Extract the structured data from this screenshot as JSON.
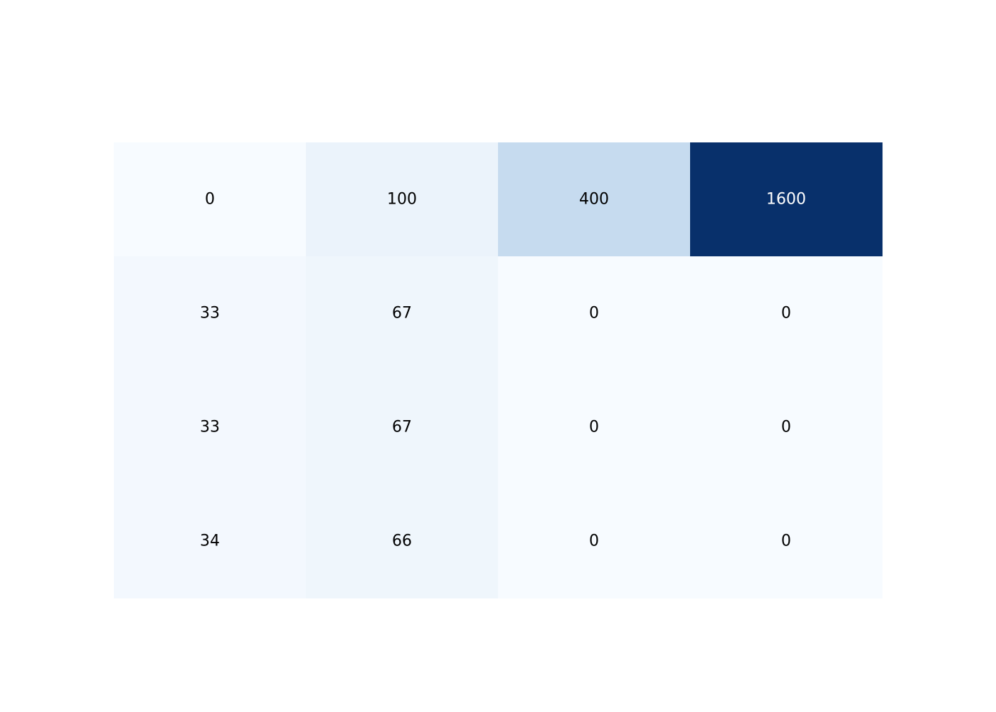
{
  "chart_data": {
    "type": "heatmap",
    "title": "",
    "xlabel": "",
    "ylabel": "",
    "colorscale": "Blues",
    "grid": false,
    "legend": "none",
    "zmin": 0,
    "zmax": 1600,
    "rows": 4,
    "cols": 4,
    "values": [
      [
        0,
        100,
        400,
        1600
      ],
      [
        33,
        67,
        0,
        0
      ],
      [
        33,
        67,
        0,
        0
      ],
      [
        34,
        66,
        0,
        0
      ]
    ],
    "text_colors": {
      "dark": "#000000",
      "light": "#ffffff"
    }
  }
}
